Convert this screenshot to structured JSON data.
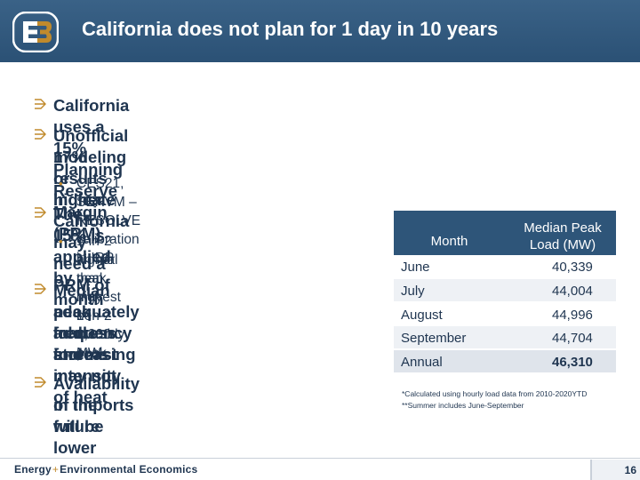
{
  "slide": {
    "title": "California does not plan for 1 day in 10 years",
    "logo_text": "E3"
  },
  "bullets": {
    "b1": "California uses a 15% Planning Reserve Margin (PRM)",
    "b2_line1": "Unofficial modeling results indicate California may need a PRM of",
    "b2_line2": "17% or higher",
    "b2_sub": "CES21, SERVM – RESOLVE calibration in IRP",
    "b3": "The 15% is applied by month",
    "b3_sub_line1": "1-in-2 annual peak may be 1,300 MW",
    "b3_sub_line2": "higher than highest 1-in-2 monthly peak",
    "b4_line1": "Median peak load forecast may not",
    "b4_line2": "adequately address increasing",
    "b4_line3": "frequency and intensity of heat",
    "b4_line4": "storms",
    "b5_line1": "Availability of imports will be lower",
    "b5_line2": "in the future"
  },
  "table": {
    "col1_header": "Month",
    "col2_header_line1": "Median Peak",
    "col2_header_line2": "Load (MW)",
    "rows": [
      {
        "month": "June",
        "value": "40,339"
      },
      {
        "month": "July",
        "value": "44,004"
      },
      {
        "month": "August",
        "value": "44,996"
      },
      {
        "month": "September",
        "value": "44,704"
      },
      {
        "month": "Annual",
        "value": "46,310"
      }
    ]
  },
  "notes": {
    "line1": "*Calculated using hourly load data from 2010-2020YTD",
    "line2": "**Summer includes June-September"
  },
  "footer": {
    "company_part1": "Energy",
    "company_sep": "+",
    "company_part2": "Environmental Economics",
    "page_number": "16"
  },
  "colors": {
    "header_bg": "#2e5579",
    "text": "#1f3550",
    "accent": "#c08a2c"
  }
}
